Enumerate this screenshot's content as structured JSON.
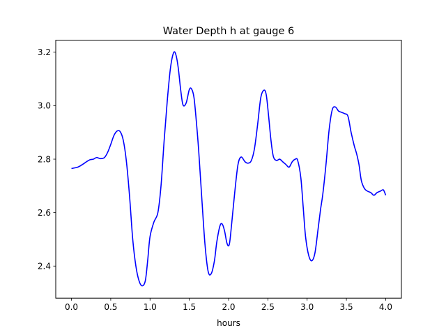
{
  "chart_data": {
    "type": "line",
    "title": "Water Depth h at gauge 6",
    "xlabel": "hours",
    "ylabel": "",
    "xlim": [
      -0.2,
      4.2
    ],
    "ylim": [
      2.28,
      3.245
    ],
    "xticks": [
      0.0,
      0.5,
      1.0,
      1.5,
      2.0,
      2.5,
      3.0,
      3.5,
      4.0
    ],
    "xtick_labels": [
      "0.0",
      "0.5",
      "1.0",
      "1.5",
      "2.0",
      "2.5",
      "3.0",
      "3.5",
      "4.0"
    ],
    "yticks": [
      2.4,
      2.6,
      2.8,
      3.0,
      3.2
    ],
    "ytick_labels": [
      "2.4",
      "2.6",
      "2.8",
      "3.0",
      "3.2"
    ],
    "grid": false,
    "series": [
      {
        "color": "#0000ff",
        "x": [
          0.0,
          0.08,
          0.14,
          0.2,
          0.24,
          0.28,
          0.32,
          0.37,
          0.42,
          0.46,
          0.5,
          0.54,
          0.58,
          0.62,
          0.66,
          0.7,
          0.74,
          0.78,
          0.82,
          0.86,
          0.9,
          0.94,
          0.97,
          1.0,
          1.05,
          1.1,
          1.14,
          1.18,
          1.22,
          1.26,
          1.3,
          1.33,
          1.36,
          1.39,
          1.42,
          1.46,
          1.5,
          1.53,
          1.56,
          1.59,
          1.62,
          1.66,
          1.7,
          1.74,
          1.78,
          1.82,
          1.85,
          1.89,
          1.92,
          1.95,
          1.98,
          2.01,
          2.04,
          2.08,
          2.12,
          2.16,
          2.21,
          2.25,
          2.29,
          2.33,
          2.37,
          2.41,
          2.45,
          2.48,
          2.51,
          2.54,
          2.57,
          2.61,
          2.65,
          2.69,
          2.73,
          2.77,
          2.81,
          2.85,
          2.88,
          2.92,
          2.95,
          2.98,
          3.02,
          3.06,
          3.1,
          3.14,
          3.17,
          3.2,
          3.24,
          3.28,
          3.32,
          3.36,
          3.4,
          3.44,
          3.48,
          3.52,
          3.56,
          3.6,
          3.63,
          3.66,
          3.69,
          3.73,
          3.77,
          3.81,
          3.85,
          3.89,
          3.93,
          3.97,
          4.0
        ],
        "y": [
          2.765,
          2.77,
          2.78,
          2.792,
          2.798,
          2.8,
          2.806,
          2.802,
          2.806,
          2.825,
          2.855,
          2.888,
          2.905,
          2.903,
          2.87,
          2.79,
          2.66,
          2.5,
          2.4,
          2.345,
          2.326,
          2.345,
          2.42,
          2.51,
          2.565,
          2.6,
          2.7,
          2.87,
          3.02,
          3.14,
          3.198,
          3.19,
          3.14,
          3.06,
          3.003,
          3.01,
          3.06,
          3.062,
          3.03,
          2.94,
          2.83,
          2.65,
          2.48,
          2.38,
          2.372,
          2.42,
          2.49,
          2.55,
          2.557,
          2.53,
          2.485,
          2.482,
          2.56,
          2.68,
          2.78,
          2.808,
          2.79,
          2.785,
          2.795,
          2.84,
          2.93,
          3.03,
          3.058,
          3.04,
          2.96,
          2.87,
          2.81,
          2.795,
          2.8,
          2.79,
          2.78,
          2.77,
          2.79,
          2.8,
          2.795,
          2.73,
          2.62,
          2.51,
          2.44,
          2.42,
          2.45,
          2.54,
          2.61,
          2.67,
          2.78,
          2.91,
          2.985,
          2.995,
          2.98,
          2.975,
          2.97,
          2.96,
          2.9,
          2.85,
          2.82,
          2.78,
          2.72,
          2.69,
          2.68,
          2.675,
          2.665,
          2.675,
          2.68,
          2.685,
          2.665
        ]
      }
    ]
  }
}
